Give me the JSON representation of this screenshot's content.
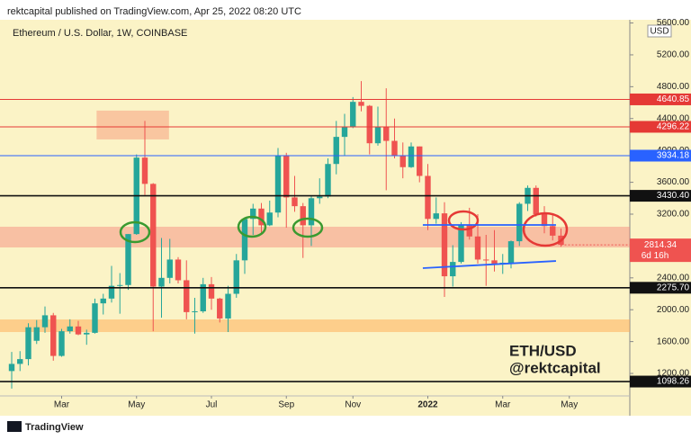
{
  "header": "rektcapital published on TradingView.com, Apr 25, 2022 08:20 UTC",
  "footer": "TradingView",
  "chart_data": {
    "type": "candlestick",
    "title": "Ethereum / U.S. Dollar, 1W, COINBASE",
    "currency": "USD",
    "open": [
      1230,
      1320,
      1380,
      1610,
      1780,
      1930,
      1420,
      1730,
      1790,
      1690,
      1710,
      2080,
      2140,
      2300,
      2310,
      2950,
      3910,
      3580,
      2290,
      2400,
      2630,
      2370,
      1970,
      1980,
      2320,
      2140,
      1890,
      2200,
      2620,
      3140,
      3270,
      3060,
      3220,
      3940,
      3410,
      3300,
      3060,
      3400,
      3420,
      3830,
      4170,
      4300,
      4610,
      4560,
      4090,
      4300,
      4120,
      3930,
      3790,
      4050,
      3680,
      3140,
      3210,
      2420,
      2600,
      3060,
      2920,
      2630,
      2620,
      2570,
      2590,
      2860,
      3330,
      3530,
      3200,
      3050,
      2930
    ],
    "high": [
      1470,
      1480,
      1830,
      1870,
      2040,
      1960,
      1760,
      1880,
      1860,
      1750,
      2140,
      2200,
      2550,
      2460,
      2950,
      3950,
      4370,
      3590,
      2900,
      2890,
      2660,
      2620,
      2150,
      2400,
      2410,
      2150,
      2300,
      2700,
      3140,
      3330,
      3340,
      3370,
      4030,
      3970,
      3680,
      3340,
      3430,
      3650,
      3900,
      4370,
      4460,
      4670,
      4870,
      4570,
      4550,
      4780,
      4400,
      4100,
      4100,
      4050,
      3830,
      3410,
      3350,
      2810,
      3100,
      3280,
      3200,
      2940,
      3000,
      2700,
      2870,
      3350,
      3560,
      3560,
      3300,
      3200,
      3020
    ],
    "low": [
      1010,
      1230,
      1300,
      1570,
      1710,
      1360,
      1410,
      1700,
      1680,
      1560,
      1700,
      1940,
      2090,
      1950,
      2250,
      2940,
      3440,
      1730,
      1900,
      2330,
      2330,
      1880,
      1700,
      1960,
      2000,
      1840,
      1720,
      2150,
      2450,
      2940,
      2960,
      3050,
      3160,
      3030,
      3230,
      2650,
      2800,
      3330,
      3400,
      3700,
      3930,
      4280,
      4490,
      3950,
      4060,
      3500,
      3900,
      3650,
      3780,
      3600,
      3000,
      3080,
      2160,
      2290,
      2580,
      2880,
      2580,
      2300,
      2480,
      2450,
      2520,
      2800,
      3240,
      3170,
      2960,
      2870,
      2790
    ],
    "close": [
      1320,
      1380,
      1780,
      1780,
      1930,
      1420,
      1730,
      1790,
      1690,
      1710,
      2080,
      2140,
      2300,
      2310,
      2950,
      3910,
      3580,
      2290,
      2400,
      2630,
      2370,
      1970,
      1980,
      2320,
      2140,
      1890,
      2200,
      2620,
      3140,
      3270,
      3060,
      3220,
      3940,
      3410,
      3300,
      3060,
      3400,
      3420,
      3830,
      4170,
      4300,
      4610,
      4560,
      4090,
      4300,
      4120,
      3930,
      3790,
      4050,
      3680,
      3140,
      3210,
      2420,
      2600,
      3060,
      2920,
      2630,
      2620,
      2570,
      2590,
      2860,
      3330,
      3530,
      3200,
      3050,
      2930,
      2814.34
    ],
    "up_color": "#26a69a",
    "down_color": "#ef5350",
    "xticks": [
      {
        "value": 6,
        "label": "Mar"
      },
      {
        "value": 15,
        "label": "May"
      },
      {
        "value": 24,
        "label": "Jul"
      },
      {
        "value": 33,
        "label": "Sep"
      },
      {
        "value": 41,
        "label": "Nov"
      },
      {
        "value": 50,
        "label": "2022"
      },
      {
        "value": 59,
        "label": "Mar"
      },
      {
        "value": 67,
        "label": "May"
      }
    ],
    "ylim": [
      918,
      5640
    ],
    "yticks": [
      {
        "value": 1200,
        "label": "1200.00"
      },
      {
        "value": 1600,
        "label": "1600.00"
      },
      {
        "value": 2000,
        "label": "2000.00"
      },
      {
        "value": 2400,
        "label": "2400.00"
      },
      {
        "value": 2800,
        "label": "2800.00"
      },
      {
        "value": 3200,
        "label": "3200.00"
      },
      {
        "value": 3600,
        "label": "3600.00"
      },
      {
        "value": 4000,
        "label": "4000.00"
      },
      {
        "value": 4400,
        "label": "4400.00"
      },
      {
        "value": 4800,
        "label": "4800.00"
      },
      {
        "value": 5200,
        "label": "5200.00"
      },
      {
        "value": 5600,
        "label": "5600.00"
      }
    ],
    "levels": [
      {
        "value": 4640.85,
        "color": "#e53935"
      },
      {
        "value": 4296.22,
        "color": "#e53935"
      },
      {
        "value": 3934.18,
        "color": "#2962ff"
      },
      {
        "value": {
          "value": 3430.4,
          "label": "3430.40"
        },
        "color": "#111111"
      },
      {
        "value": {
          "value": 2275.7,
          "label": "2275.70"
        },
        "color": "#111111"
      },
      {
        "value": 1098.26,
        "color": "#111111"
      }
    ],
    "countdown": "6d 16h",
    "zones": [
      {
        "from": 2782,
        "to": 3042,
        "color": "rgba(244,130,120,0.45)"
      },
      {
        "from": 1720,
        "to": 1878,
        "color": "rgba(255,170,80,0.5)"
      },
      {
        "from": 4138,
        "to": 4500,
        "color": "rgba(248,160,130,0.55)",
        "start": 10.2,
        "end": 18.9
      }
    ],
    "trendlines": [
      {
        "color": "#2962ff",
        "start": {
          "index": 49.4,
          "value": 3064
        },
        "end": {
          "index": 65.4,
          "value": 3064
        }
      },
      {
        "color": "#2962ff",
        "start": {
          "index": 49.4,
          "value": 2522
        },
        "end": {
          "index": 65.4,
          "value": 2612
        }
      }
    ],
    "annotations": [
      "ETH/USD",
      "@rektcapital"
    ]
  }
}
